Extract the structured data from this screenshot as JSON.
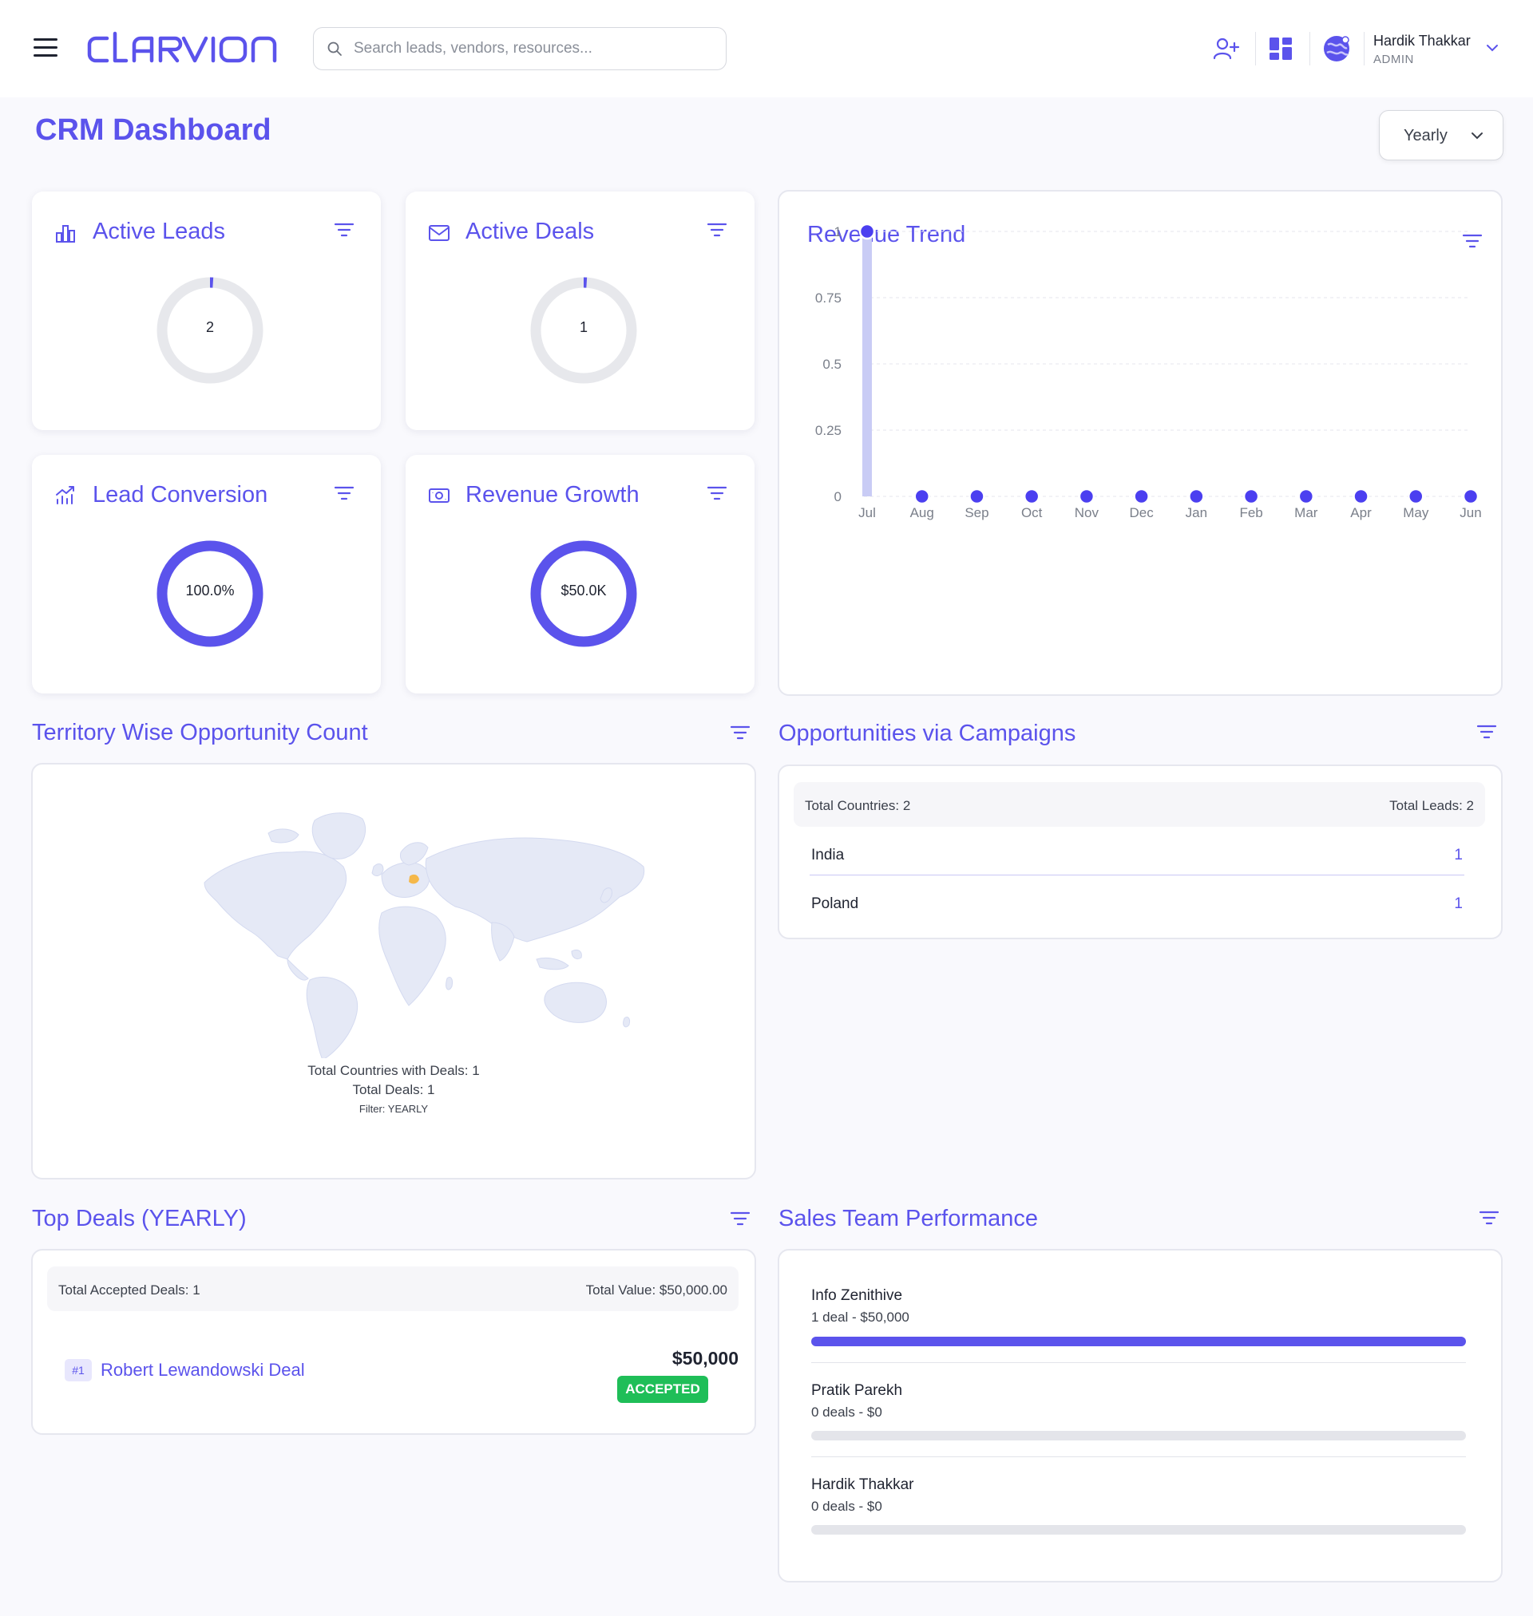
{
  "header": {
    "logo_text": "clarvion",
    "search_placeholder": "Search leads, vendors, resources...",
    "user": {
      "name": "Hardik Thakkar",
      "role": "ADMIN"
    }
  },
  "page": {
    "title": "CRM Dashboard",
    "period": "Yearly"
  },
  "kpis": {
    "active_leads": {
      "title": "Active Leads",
      "value": "2",
      "fill": 0.01
    },
    "active_deals": {
      "title": "Active Deals",
      "value": "1",
      "fill": 0.01
    },
    "lead_conversion": {
      "title": "Lead Conversion",
      "value": "100.0%",
      "fill": 1.0
    },
    "revenue_growth": {
      "title": "Revenue Growth",
      "value": "$50.0K",
      "fill": 1.0
    }
  },
  "revenue_trend": {
    "title": "Revenue Trend"
  },
  "chart_data": {
    "type": "line",
    "x": [
      "Jul",
      "Aug",
      "Sep",
      "Oct",
      "Nov",
      "Dec",
      "Jan",
      "Feb",
      "Mar",
      "Apr",
      "May",
      "Jun"
    ],
    "series": [
      {
        "values": [
          1,
          0,
          0,
          0,
          0,
          0,
          0,
          0,
          0,
          0,
          0,
          0
        ]
      }
    ],
    "yticks": [
      "0",
      "0.25",
      "0.5",
      "0.75",
      "1"
    ],
    "ylim": [
      0,
      1
    ],
    "grid": true,
    "colors": {
      "point": "#4b3ff0",
      "highlight": "#c9ccf5"
    }
  },
  "territory": {
    "title": "Territory Wise Opportunity Count",
    "caption_countries": "Total Countries with Deals: 1",
    "caption_deals": "Total Deals: 1",
    "caption_filter": "Filter: YEARLY"
  },
  "campaigns": {
    "title": "Opportunities via Campaigns",
    "total_countries": "Total Countries: 2",
    "total_leads": "Total Leads: 2",
    "rows": [
      {
        "label": "India",
        "value": "1"
      },
      {
        "label": "Poland",
        "value": "1"
      }
    ]
  },
  "top_deals": {
    "title": "Top Deals (YEARLY)",
    "total_accepted": "Total Accepted Deals: 1",
    "total_value": "Total Value: $50,000.00",
    "deals": [
      {
        "rank": "#1",
        "name": "Robert Lewandowski Deal",
        "amount": "$50,000",
        "status": "ACCEPTED"
      }
    ]
  },
  "sales_team": {
    "title": "Sales Team Performance",
    "members": [
      {
        "name": "Info Zenithive",
        "summary": "1 deal - $50,000",
        "progress": 1.0
      },
      {
        "name": "Pratik Parekh",
        "summary": "0 deals - $0",
        "progress": 0
      },
      {
        "name": "Hardik Thakkar",
        "summary": "0 deals - $0",
        "progress": 0
      }
    ]
  },
  "colors": {
    "accent": "#5b53ec",
    "success": "#1fbe58",
    "map_land": "#e5e9f6",
    "map_highlight": "#f5b84a"
  }
}
